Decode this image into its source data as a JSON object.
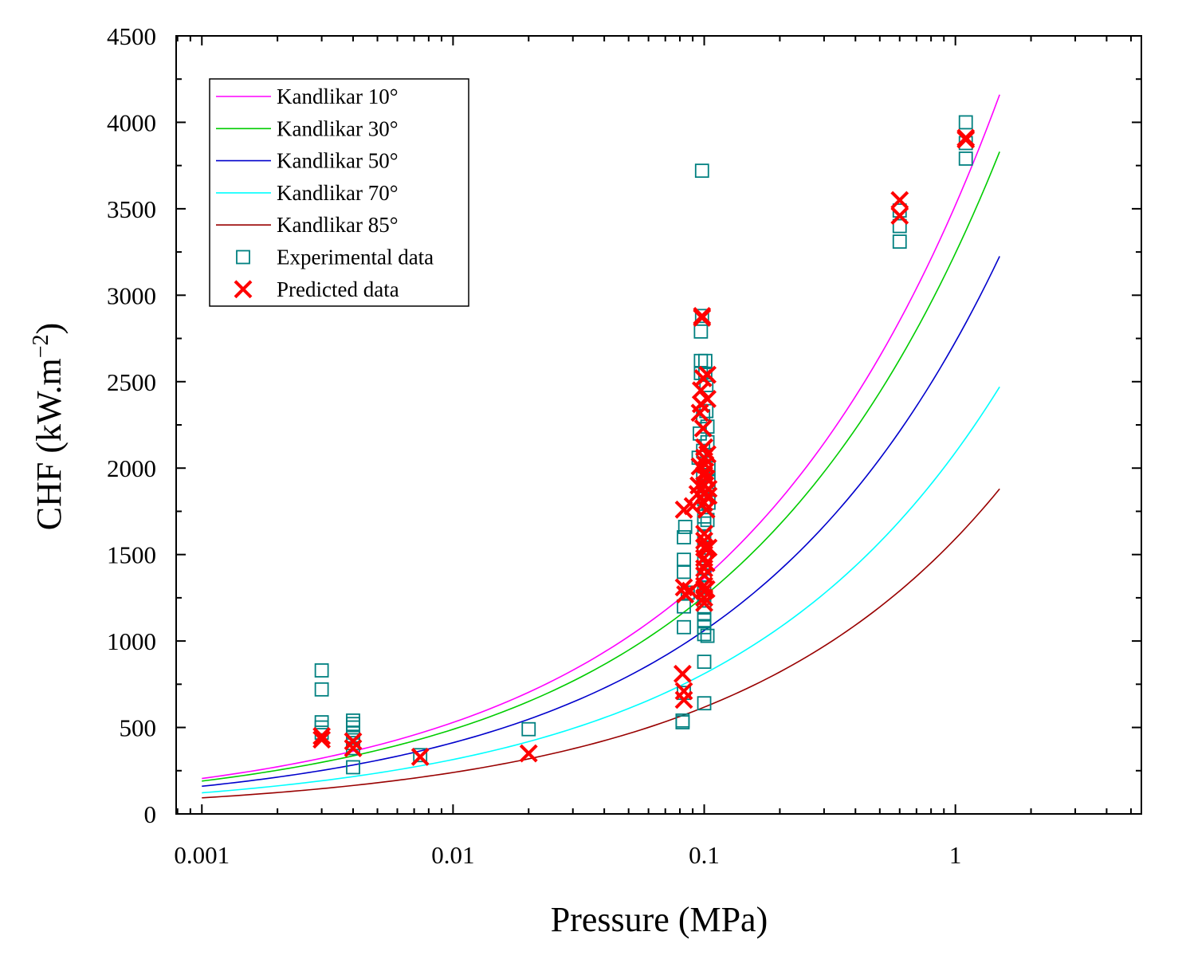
{
  "chart_data": {
    "type": "scatter",
    "xlabel": "Pressure (MPa)",
    "ylabel_main": "CHF (kW.m",
    "ylabel_sup": "−2",
    "ylabel_close": ")",
    "xscale": "log",
    "xlim": [
      0.00079,
      5.5
    ],
    "ylim": [
      0,
      4500
    ],
    "x_ticks": [
      {
        "value": 0.001,
        "label": "0.001"
      },
      {
        "value": 0.01,
        "label": "0.01"
      },
      {
        "value": 0.1,
        "label": "0.1"
      },
      {
        "value": 1,
        "label": "1"
      }
    ],
    "y_ticks": [
      {
        "value": 0,
        "label": "0"
      },
      {
        "value": 500,
        "label": "500"
      },
      {
        "value": 1000,
        "label": "1000"
      },
      {
        "value": 1500,
        "label": "1500"
      },
      {
        "value": 2000,
        "label": "2000"
      },
      {
        "value": 2500,
        "label": "2500"
      },
      {
        "value": 3000,
        "label": "3000"
      },
      {
        "value": 3500,
        "label": "3500"
      },
      {
        "value": 4000,
        "label": "4000"
      },
      {
        "value": 4500,
        "label": "4500"
      }
    ],
    "grid": false,
    "legend_position": "top-left",
    "curves": [
      {
        "name": "Kandlikar 10°",
        "color": "#ff00ff",
        "x_range": [
          0.001,
          1.5
        ],
        "y_start": 205,
        "y_end": 4160
      },
      {
        "name": "Kandlikar 30°",
        "color": "#00cc00",
        "x_range": [
          0.001,
          1.5
        ],
        "y_start": 190,
        "y_end": 3830
      },
      {
        "name": "Kandlikar 50°",
        "color": "#0000cc",
        "x_range": [
          0.001,
          1.5
        ],
        "y_start": 160,
        "y_end": 3225
      },
      {
        "name": "Kandlikar 70°",
        "color": "#00ffff",
        "x_range": [
          0.001,
          1.5
        ],
        "y_start": 122,
        "y_end": 2470
      },
      {
        "name": "Kandlikar 85°",
        "color": "#990000",
        "x_range": [
          0.001,
          1.5
        ],
        "y_start": 93,
        "y_end": 1880
      }
    ],
    "experimental": {
      "name": "Experimental data",
      "color": "#008080",
      "points": [
        [
          0.003,
          830
        ],
        [
          0.003,
          720
        ],
        [
          0.003,
          530
        ],
        [
          0.003,
          500
        ],
        [
          0.003,
          470
        ],
        [
          0.004,
          540
        ],
        [
          0.004,
          520
        ],
        [
          0.004,
          500
        ],
        [
          0.004,
          470
        ],
        [
          0.004,
          440
        ],
        [
          0.004,
          410
        ],
        [
          0.004,
          380
        ],
        [
          0.004,
          270
        ],
        [
          0.0074,
          340
        ],
        [
          0.02,
          490
        ],
        [
          0.082,
          540
        ],
        [
          0.082,
          530
        ],
        [
          0.083,
          700
        ],
        [
          0.083,
          1080
        ],
        [
          0.083,
          1200
        ],
        [
          0.083,
          1400
        ],
        [
          0.083,
          1470
        ],
        [
          0.083,
          1600
        ],
        [
          0.084,
          1660
        ],
        [
          0.086,
          1280
        ],
        [
          0.095,
          2060
        ],
        [
          0.096,
          2200
        ],
        [
          0.097,
          2550
        ],
        [
          0.097,
          2620
        ],
        [
          0.097,
          2790
        ],
        [
          0.098,
          2880
        ],
        [
          0.098,
          3720
        ],
        [
          0.099,
          2300
        ],
        [
          0.099,
          2100
        ],
        [
          0.099,
          1960
        ],
        [
          0.1,
          1880
        ],
        [
          0.1,
          1820
        ],
        [
          0.1,
          1720
        ],
        [
          0.1,
          1680
        ],
        [
          0.1,
          1600
        ],
        [
          0.1,
          1540
        ],
        [
          0.1,
          1480
        ],
        [
          0.1,
          1420
        ],
        [
          0.1,
          1380
        ],
        [
          0.1,
          1310
        ],
        [
          0.1,
          1250
        ],
        [
          0.1,
          1200
        ],
        [
          0.1,
          1160
        ],
        [
          0.1,
          1120
        ],
        [
          0.1,
          1080
        ],
        [
          0.1,
          1040
        ],
        [
          0.1,
          880
        ],
        [
          0.1,
          640
        ],
        [
          0.101,
          2620
        ],
        [
          0.101,
          2540
        ],
        [
          0.102,
          2480
        ],
        [
          0.102,
          2330
        ],
        [
          0.103,
          2240
        ],
        [
          0.103,
          2150
        ],
        [
          0.104,
          2000
        ],
        [
          0.104,
          1920
        ],
        [
          0.104,
          1800
        ],
        [
          0.103,
          1700
        ],
        [
          0.103,
          1030
        ],
        [
          0.6,
          3310
        ],
        [
          0.6,
          3400
        ],
        [
          0.6,
          3490
        ],
        [
          1.1,
          3790
        ],
        [
          1.1,
          3880
        ],
        [
          1.1,
          4000
        ]
      ]
    },
    "predicted": {
      "name": "Predicted data",
      "color": "#ff0000",
      "points": [
        [
          0.003,
          450
        ],
        [
          0.003,
          430
        ],
        [
          0.004,
          420
        ],
        [
          0.004,
          380
        ],
        [
          0.0074,
          330
        ],
        [
          0.02,
          350
        ],
        [
          0.082,
          810
        ],
        [
          0.083,
          710
        ],
        [
          0.083,
          660
        ],
        [
          0.083,
          1760
        ],
        [
          0.083,
          1310
        ],
        [
          0.084,
          1270
        ],
        [
          0.088,
          1290
        ],
        [
          0.09,
          1780
        ],
        [
          0.094,
          1850
        ],
        [
          0.095,
          1900
        ],
        [
          0.096,
          2010
        ],
        [
          0.096,
          2320
        ],
        [
          0.097,
          2370
        ],
        [
          0.097,
          2450
        ],
        [
          0.098,
          2880
        ],
        [
          0.098,
          2870
        ],
        [
          0.099,
          2520
        ],
        [
          0.099,
          2230
        ],
        [
          0.1,
          2120
        ],
        [
          0.1,
          2060
        ],
        [
          0.1,
          1960
        ],
        [
          0.1,
          1900
        ],
        [
          0.1,
          1850
        ],
        [
          0.1,
          1800
        ],
        [
          0.1,
          1620
        ],
        [
          0.1,
          1580
        ],
        [
          0.1,
          1540
        ],
        [
          0.1,
          1480
        ],
        [
          0.1,
          1420
        ],
        [
          0.1,
          1380
        ],
        [
          0.1,
          1320
        ],
        [
          0.1,
          1290
        ],
        [
          0.1,
          1250
        ],
        [
          0.1,
          1220
        ],
        [
          0.101,
          2020
        ],
        [
          0.101,
          1980
        ],
        [
          0.102,
          1940
        ],
        [
          0.102,
          1760
        ],
        [
          0.102,
          1450
        ],
        [
          0.102,
          1300
        ],
        [
          0.103,
          2540
        ],
        [
          0.103,
          2400
        ],
        [
          0.103,
          2080
        ],
        [
          0.104,
          1880
        ],
        [
          0.104,
          1840
        ],
        [
          0.104,
          1540
        ],
        [
          0.6,
          3550
        ],
        [
          0.6,
          3460
        ],
        [
          1.1,
          3900
        ],
        [
          1.1,
          3910
        ]
      ]
    }
  }
}
